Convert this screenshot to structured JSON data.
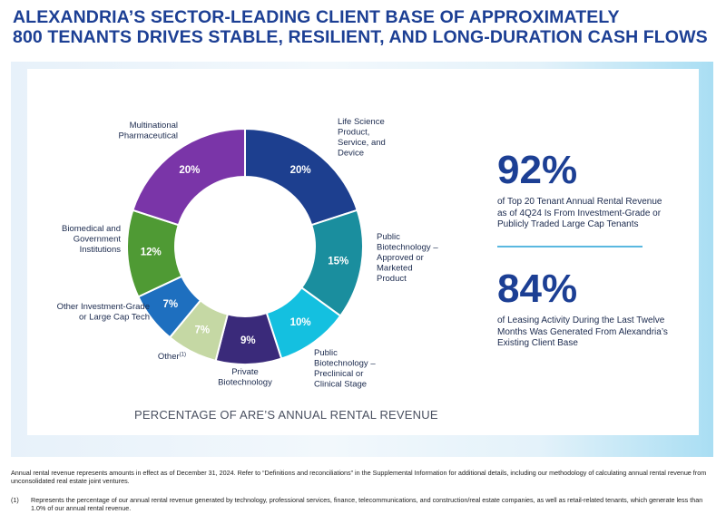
{
  "title": {
    "line1": "ALEXANDRIA’S SECTOR-LEADING CLIENT BASE OF APPROXIMATELY",
    "line2": "800 TENANTS DRIVES STABLE, RESILIENT, AND LONG-DURATION CASH FLOWS"
  },
  "chart_data": {
    "type": "pie",
    "subtype": "donut",
    "title": "PERCENTAGE OF ARE’S ANNUAL RENTAL REVENUE",
    "segments": [
      {
        "label": "Life Science Product, Service, and Device",
        "label_lines": [
          "Life Science",
          "Product,",
          "Service, and",
          "Device"
        ],
        "value": 20,
        "display": "20%",
        "color": "#1d3f8f"
      },
      {
        "label": "Public Biotechnology – Approved or Marketed Product",
        "label_lines": [
          "Public",
          "Biotechnology –",
          "Approved or",
          "Marketed",
          "Product"
        ],
        "value": 15,
        "display": "15%",
        "color": "#1a8e9e"
      },
      {
        "label": "Public Biotechnology – Preclinical or Clinical Stage",
        "label_lines": [
          "Public",
          "Biotechnology –",
          "Preclinical or",
          "Clinical Stage"
        ],
        "value": 10,
        "display": "10%",
        "color": "#14c0e0"
      },
      {
        "label": "Private Biotechnology",
        "label_lines": [
          "Private",
          "Biotechnology"
        ],
        "value": 9,
        "display": "9%",
        "color": "#3a2a7a"
      },
      {
        "label": "Other(1)",
        "label_lines": [
          "Other"
        ],
        "footnote_mark": "(1)",
        "value": 7,
        "display": "7%",
        "color": "#c5d8a4"
      },
      {
        "label": "Other Investment-Grade or Large Cap Tech",
        "label_lines": [
          "Other Investment-Grade",
          "or Large Cap Tech"
        ],
        "value": 7,
        "display": "7%",
        "color": "#1e6fbf"
      },
      {
        "label": "Biomedical and Government Institutions",
        "label_lines": [
          "Biomedical and",
          "Government",
          "Institutions"
        ],
        "value": 12,
        "display": "12%",
        "color": "#4f9a34"
      },
      {
        "label": "Multinational Pharmaceutical",
        "label_lines": [
          "Multinational",
          "Pharmaceutical"
        ],
        "value": 20,
        "display": "20%",
        "color": "#7a35a8"
      }
    ]
  },
  "stats": [
    {
      "value": "92%",
      "text": "of Top 20 Tenant Annual Rental Revenue as of 4Q24 Is From Investment-Grade or Publicly Traded Large Cap Tenants"
    },
    {
      "value": "84%",
      "text": "of Leasing Activity During the Last Twelve Months Was Generated From Alexandria’s Existing Client Base"
    }
  ],
  "footnotes": {
    "main": "Annual rental revenue represents amounts in effect as of December 31, 2024. Refer to “Definitions and reconciliations” in the Supplemental Information for additional details, including our methodology of calculating annual rental revenue from unconsolidated real estate joint ventures.",
    "note1_mark": "(1)",
    "note1": "Represents the percentage of our annual rental revenue generated by technology, professional services, finance, telecommunications, and construction/real estate companies, as well as retail-related tenants, which generate less than 1.0% of our annual rental revenue."
  }
}
